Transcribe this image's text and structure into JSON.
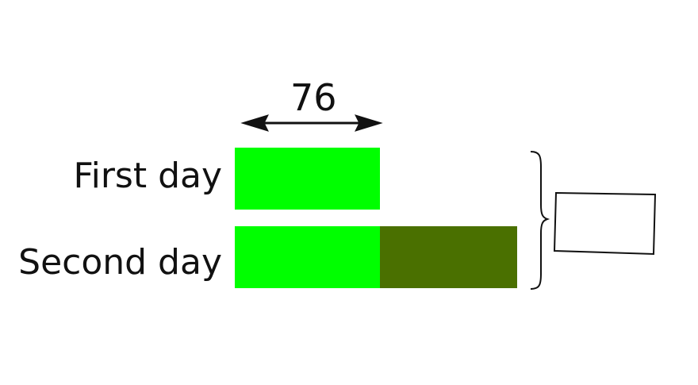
{
  "measure": {
    "value": "76"
  },
  "rows": [
    {
      "label": "First day"
    },
    {
      "label": "Second day"
    }
  ],
  "colors": {
    "known_part": "#00FF00",
    "extra_part": "#4A7000",
    "ink": "#111111"
  },
  "icons": {
    "arrow": "double-headed-arrow-icon",
    "brace": "right-curly-brace-icon"
  },
  "answer_box": {
    "value": ""
  }
}
